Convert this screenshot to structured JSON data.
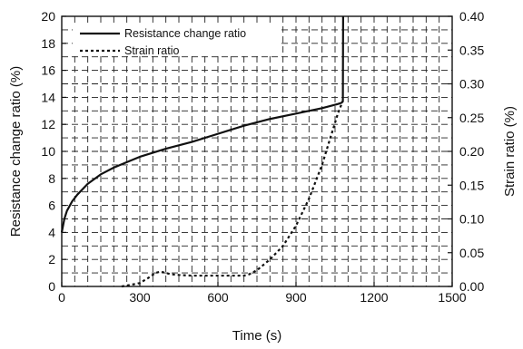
{
  "chart_data": {
    "type": "line",
    "title": "",
    "xlabel": "Time (s)",
    "ylabel_left": "Resistance change ratio (%)",
    "ylabel_right": "Strain ratio (%)",
    "xlim": [
      0,
      1500
    ],
    "ylim_left": [
      0,
      20
    ],
    "ylim_right": [
      0,
      0.4
    ],
    "x_ticks": [
      "0",
      "300",
      "600",
      "900",
      "1200",
      "1500"
    ],
    "y_left_ticks": [
      "0",
      "2",
      "4",
      "6",
      "8",
      "10",
      "12",
      "14",
      "16",
      "18",
      "20"
    ],
    "y_right_ticks": [
      "0.00",
      "0.05",
      "0.10",
      "0.15",
      "0.20",
      "0.25",
      "0.30",
      "0.35",
      "0.40"
    ],
    "grid": true,
    "legend_position": "top-left",
    "series": [
      {
        "name": "Resistance change ratio",
        "axis": "left",
        "style": "solid",
        "color": "#111111",
        "x": [
          0,
          10,
          20,
          40,
          60,
          100,
          150,
          200,
          250,
          300,
          400,
          500,
          600,
          700,
          800,
          900,
          1000,
          1060,
          1075,
          1080,
          1081
        ],
        "y": [
          4.0,
          5.0,
          5.6,
          6.3,
          6.8,
          7.6,
          8.3,
          8.8,
          9.2,
          9.6,
          10.2,
          10.7,
          11.3,
          11.9,
          12.4,
          12.8,
          13.2,
          13.5,
          13.6,
          13.7,
          20.0
        ]
      },
      {
        "name": "Strain ratio",
        "axis": "right",
        "style": "dotted",
        "color": "#111111",
        "x": [
          230,
          260,
          300,
          330,
          360,
          380,
          400,
          420,
          450,
          500,
          600,
          700,
          720,
          750,
          800,
          850,
          900,
          950,
          1000,
          1040,
          1060,
          1075,
          1080
        ],
        "y": [
          0.0,
          0.002,
          0.005,
          0.012,
          0.02,
          0.022,
          0.02,
          0.018,
          0.017,
          0.016,
          0.016,
          0.016,
          0.018,
          0.024,
          0.04,
          0.06,
          0.09,
          0.13,
          0.18,
          0.23,
          0.255,
          0.27,
          0.275
        ]
      }
    ]
  }
}
